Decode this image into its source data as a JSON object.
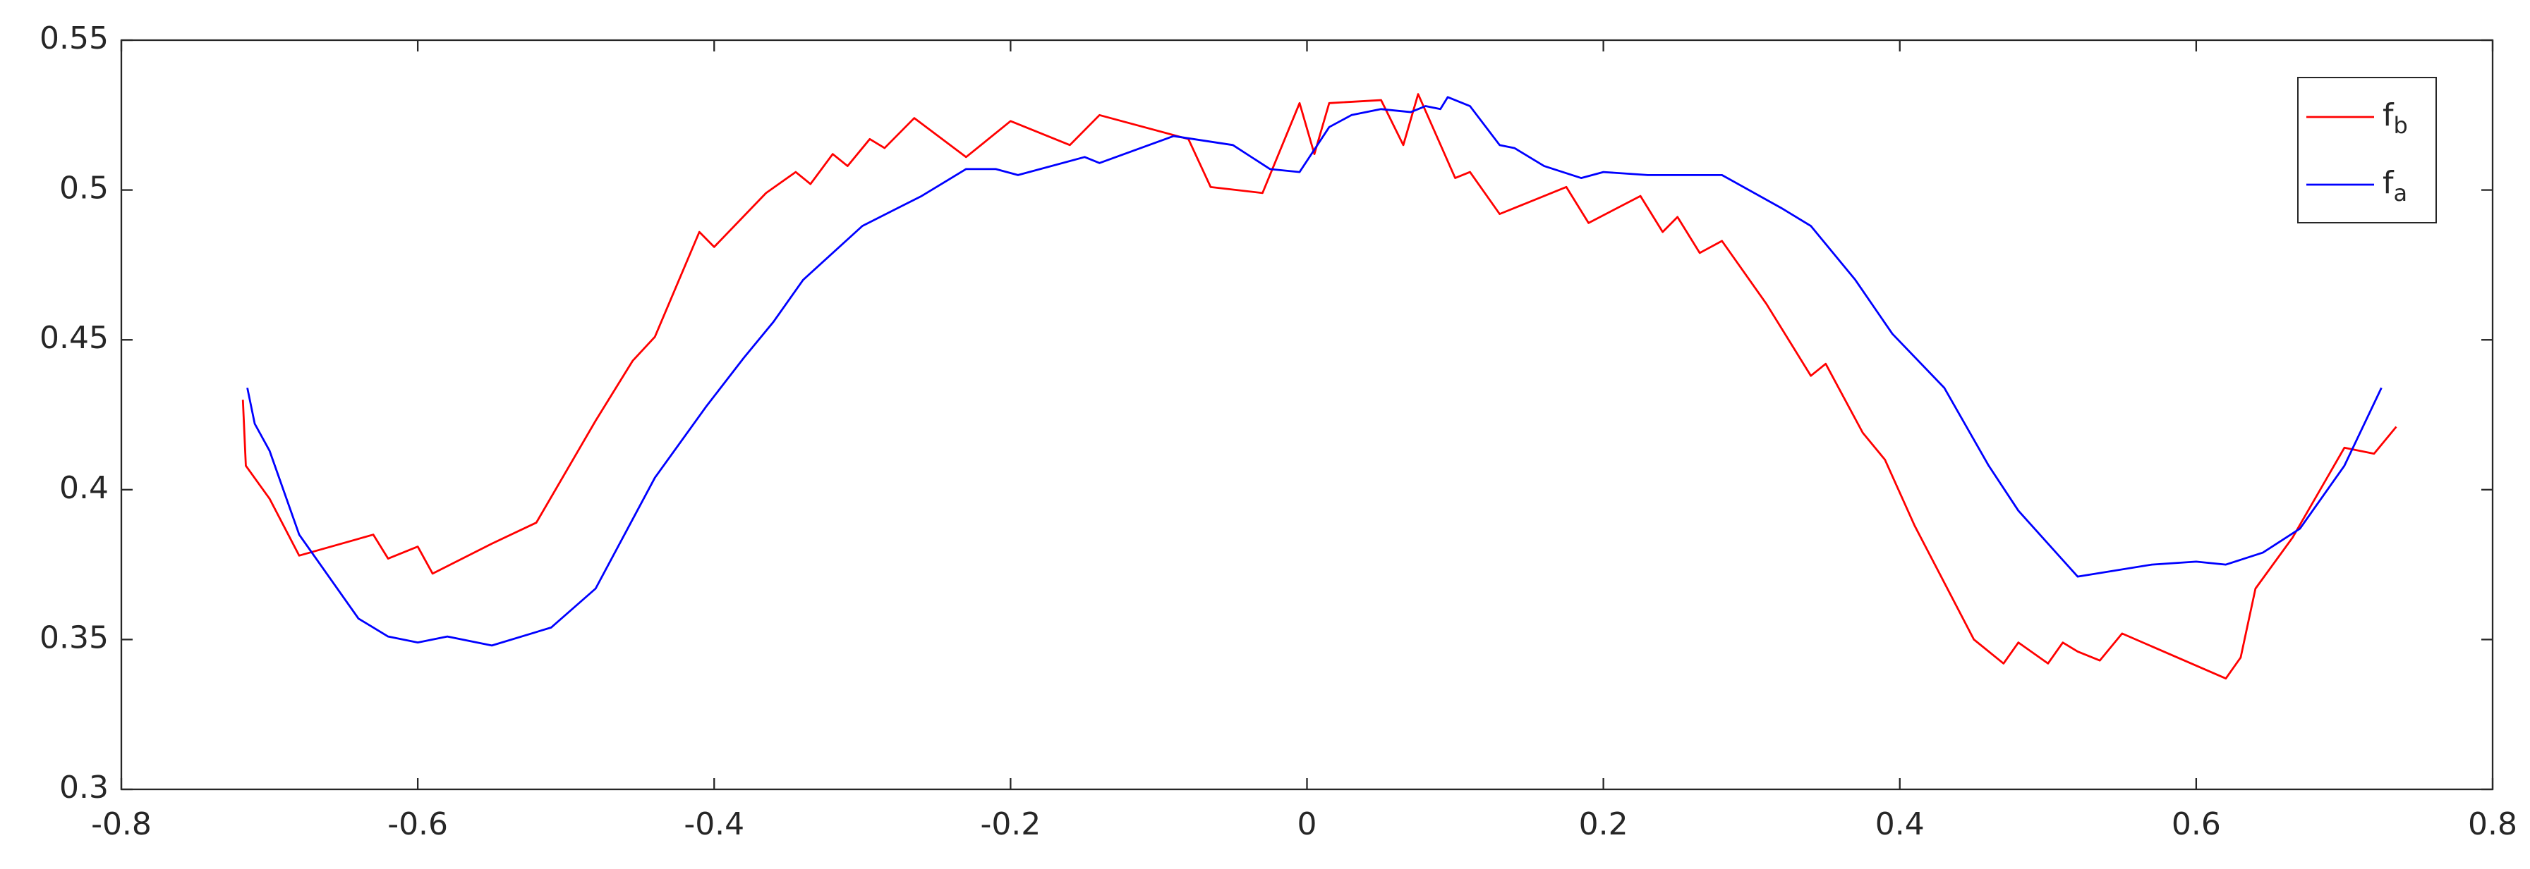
{
  "chart_data": {
    "type": "line",
    "xlim": [
      -0.8,
      0.8
    ],
    "xticks": [
      -0.8,
      -0.6,
      -0.4,
      -0.2,
      0,
      0.2,
      0.4,
      0.6,
      0.8
    ],
    "ylim": [
      0.3,
      0.55
    ],
    "yticks": [
      0.3,
      0.35,
      0.4,
      0.45,
      0.5,
      0.55
    ],
    "grid": false,
    "legend": "upper right",
    "series": [
      {
        "name": "fb",
        "color": "#ff0000",
        "x": [
          -0.718,
          -0.716,
          -0.7,
          -0.68,
          -0.63,
          -0.62,
          -0.6,
          -0.59,
          -0.55,
          -0.52,
          -0.48,
          -0.455,
          -0.44,
          -0.41,
          -0.4,
          -0.365,
          -0.345,
          -0.335,
          -0.32,
          -0.31,
          -0.295,
          -0.285,
          -0.265,
          -0.23,
          -0.2,
          -0.18,
          -0.16,
          -0.14,
          -0.08,
          -0.065,
          -0.03,
          -0.005,
          0.005,
          0.015,
          0.05,
          0.065,
          0.075,
          0.1,
          0.11,
          0.13,
          0.175,
          0.19,
          0.225,
          0.24,
          0.25,
          0.265,
          0.28,
          0.31,
          0.34,
          0.35,
          0.375,
          0.39,
          0.41,
          0.45,
          0.47,
          0.48,
          0.5,
          0.51,
          0.52,
          0.535,
          0.55,
          0.62,
          0.63,
          0.64,
          0.665,
          0.7,
          0.72,
          0.735
        ],
        "values": [
          0.43,
          0.408,
          0.397,
          0.378,
          0.385,
          0.377,
          0.381,
          0.372,
          0.382,
          0.389,
          0.423,
          0.443,
          0.451,
          0.486,
          0.481,
          0.499,
          0.506,
          0.502,
          0.512,
          0.508,
          0.517,
          0.514,
          0.524,
          0.511,
          0.523,
          0.519,
          0.515,
          0.525,
          0.517,
          0.501,
          0.499,
          0.529,
          0.512,
          0.529,
          0.53,
          0.515,
          0.532,
          0.504,
          0.506,
          0.492,
          0.501,
          0.489,
          0.498,
          0.486,
          0.491,
          0.479,
          0.483,
          0.462,
          0.438,
          0.442,
          0.419,
          0.41,
          0.388,
          0.35,
          0.342,
          0.349,
          0.342,
          0.349,
          0.346,
          0.343,
          0.352,
          0.337,
          0.344,
          0.367,
          0.384,
          0.414,
          0.412,
          0.421
        ]
      },
      {
        "name": "fa",
        "color": "#0000ff",
        "x": [
          -0.715,
          -0.71,
          -0.7,
          -0.68,
          -0.64,
          -0.62,
          -0.6,
          -0.58,
          -0.55,
          -0.51,
          -0.48,
          -0.44,
          -0.405,
          -0.38,
          -0.36,
          -0.34,
          -0.3,
          -0.26,
          -0.23,
          -0.21,
          -0.195,
          -0.15,
          -0.14,
          -0.09,
          -0.05,
          -0.025,
          -0.005,
          0.015,
          0.03,
          0.05,
          0.07,
          0.08,
          0.09,
          0.095,
          0.1,
          0.11,
          0.13,
          0.14,
          0.16,
          0.185,
          0.2,
          0.23,
          0.28,
          0.32,
          0.34,
          0.37,
          0.395,
          0.43,
          0.46,
          0.48,
          0.52,
          0.57,
          0.6,
          0.62,
          0.645,
          0.67,
          0.7,
          0.725
        ],
        "values": [
          0.434,
          0.422,
          0.413,
          0.385,
          0.357,
          0.351,
          0.349,
          0.351,
          0.348,
          0.354,
          0.367,
          0.404,
          0.428,
          0.444,
          0.456,
          0.47,
          0.488,
          0.498,
          0.507,
          0.507,
          0.505,
          0.511,
          0.509,
          0.518,
          0.515,
          0.507,
          0.506,
          0.521,
          0.525,
          0.527,
          0.526,
          0.528,
          0.527,
          0.531,
          0.53,
          0.528,
          0.515,
          0.514,
          0.508,
          0.504,
          0.506,
          0.505,
          0.505,
          0.494,
          0.488,
          0.47,
          0.452,
          0.434,
          0.408,
          0.393,
          0.371,
          0.375,
          0.376,
          0.375,
          0.379,
          0.387,
          0.408,
          0.434
        ]
      }
    ]
  }
}
